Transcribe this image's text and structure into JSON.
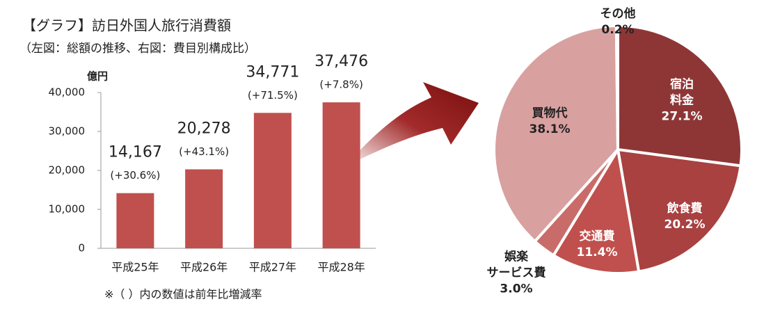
{
  "chart_data": [
    {
      "type": "bar",
      "title": "【グラフ】訪日外国人旅行消費額",
      "subtitle": "（左図：総額の推移、右図：費目別構成比）",
      "y_unit": "億円",
      "categories": [
        "平成25年",
        "平成26年",
        "平成27年",
        "平成28年"
      ],
      "values": [
        14167,
        20278,
        34771,
        37476
      ],
      "value_labels": [
        "14,167",
        "20,278",
        "34,771",
        "37,476"
      ],
      "change_labels": [
        "(+30.6%)",
        "(+43.1%)",
        "(+71.5%)",
        "(+7.8%)"
      ],
      "note": "※（ ）内の数値は前年比増減率",
      "color": "#c0504d",
      "ylim": [
        0,
        40000
      ],
      "yticks": [
        0,
        {
          "value": 10000,
          "label": "10,000"
        },
        {
          "value": 20000,
          "label": "20,000"
        },
        {
          "value": 30000,
          "label": "30,000"
        },
        {
          "value": 40000,
          "label": "40,000"
        }
      ],
      "grid": false
    },
    {
      "type": "pie",
      "categories": [
        "宿泊\n料金",
        "飲食費",
        "交通費",
        "娯楽\nサービス費",
        "買物代",
        "その他"
      ],
      "values": [
        27.1,
        20.2,
        11.4,
        3.0,
        38.1,
        0.2
      ],
      "value_labels": [
        "27.1%",
        "20.2%",
        "11.4%",
        "3.0%",
        "38.1%",
        "0.2%"
      ],
      "colors": [
        "#8e3636",
        "#a84140",
        "#c0504d",
        "#c96c69",
        "#d9a0a0",
        "#b04848"
      ]
    }
  ]
}
